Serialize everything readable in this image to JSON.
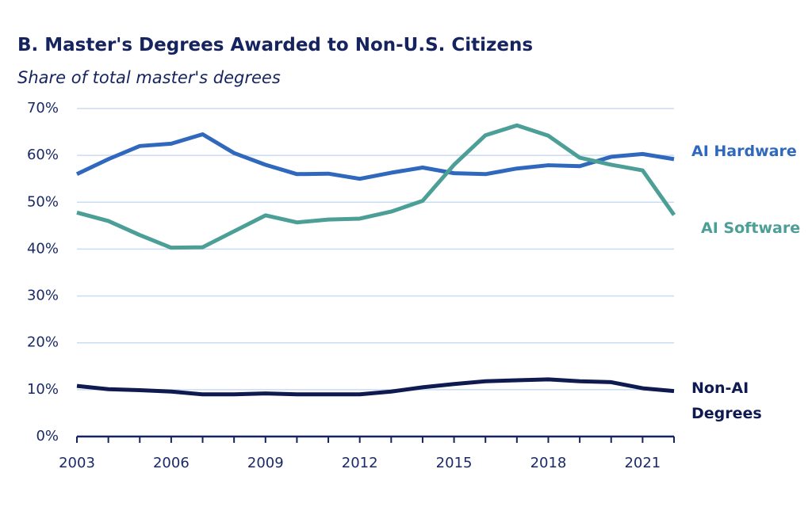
{
  "chart_data": {
    "type": "line",
    "title": "B. Master's Degrees Awarded to Non-U.S. Citizens",
    "subtitle": "Share of total master's degrees",
    "x": [
      2003,
      2004,
      2005,
      2006,
      2007,
      2008,
      2009,
      2010,
      2011,
      2012,
      2013,
      2014,
      2015,
      2016,
      2017,
      2018,
      2019,
      2020,
      2021,
      2022
    ],
    "xlim": [
      2003,
      2022
    ],
    "xticks": [
      2003,
      2006,
      2009,
      2012,
      2015,
      2018,
      2021
    ],
    "ylim": [
      0,
      70
    ],
    "yticks": [
      {
        "value": 0,
        "label": "0%"
      },
      {
        "value": 10,
        "label": "10%"
      },
      {
        "value": 20,
        "label": "20%"
      },
      {
        "value": 30,
        "label": "30%"
      },
      {
        "value": 40,
        "label": "40%"
      },
      {
        "value": 50,
        "label": "50%"
      },
      {
        "value": 60,
        "label": "60%"
      },
      {
        "value": 70,
        "label": "70%"
      }
    ],
    "grid": true,
    "series": [
      {
        "name": "AI Hardware",
        "color": "#2f68bd",
        "values": [
          56,
          59.2,
          62,
          62.5,
          64.5,
          60.5,
          58,
          56,
          56.1,
          55,
          56.3,
          57.4,
          56.2,
          56,
          57.2,
          57.9,
          57.7,
          59.7,
          60.3,
          59.2
        ]
      },
      {
        "name": "AI Software",
        "color": "#4b9f97",
        "values": [
          47.8,
          46,
          43,
          40.3,
          40.4,
          43.8,
          47.2,
          45.7,
          46.3,
          46.5,
          48,
          50.3,
          58,
          64.3,
          66.4,
          64.2,
          59.5,
          58,
          56.8,
          47.3
        ]
      },
      {
        "name": "Non-AI Degrees",
        "color": "#0e1a50",
        "values": [
          10.8,
          10.1,
          9.9,
          9.6,
          9,
          9,
          9.2,
          9,
          9,
          9,
          9.6,
          10.5,
          11.2,
          11.8,
          12,
          12.2,
          11.8,
          11.6,
          10.3,
          9.7
        ]
      }
    ]
  }
}
